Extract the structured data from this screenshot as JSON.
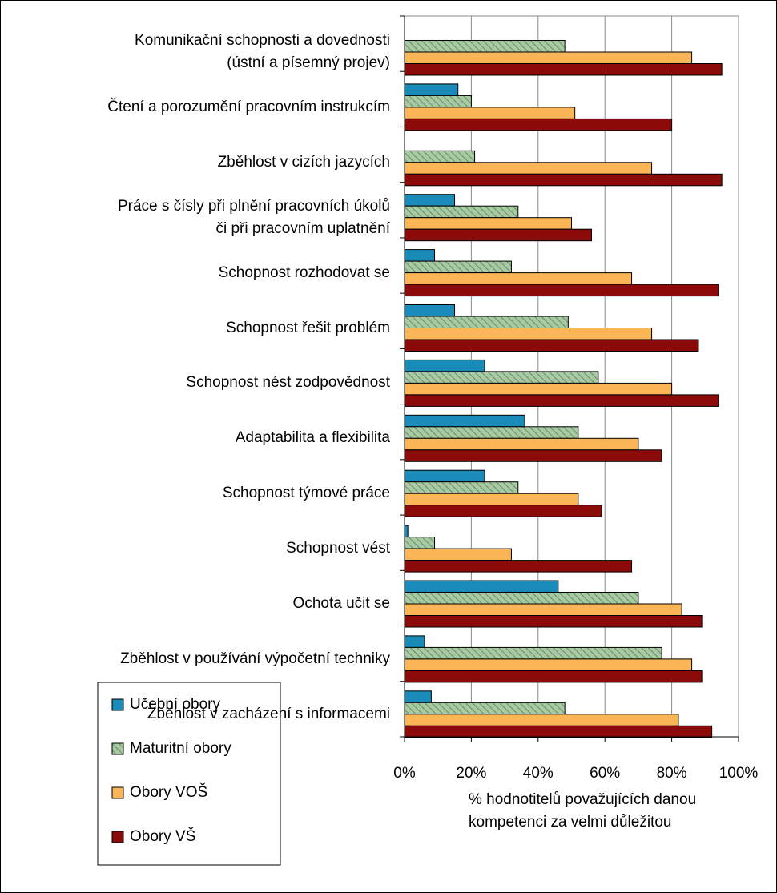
{
  "chart_data": {
    "type": "bar",
    "orientation": "horizontal",
    "categories": [
      "Komunikační schopnosti a dovednosti\n(ústní a písemný projev)",
      "Čtení a porozumění pracovním instrukcím",
      "Zběhlost v cizích jazycích",
      "Práce s čísly při plnění pracovních úkolů\nči při pracovním uplatnění",
      "Schopnost rozhodovat se",
      "Schopnost řešit problém",
      "Schopnost nést zodpovědnost",
      "Adaptabilita a flexibilita",
      "Schopnost týmové práce",
      "Schopnost vést",
      "Ochota učit se",
      "Zběhlost v používání výpočetní techniky",
      "Zběhlost v zacházení s informacemi"
    ],
    "series": [
      {
        "name": "Učební obory",
        "color": "#1a8ab8",
        "values": [
          null,
          16,
          null,
          15,
          9,
          15,
          24,
          36,
          24,
          1,
          46,
          6,
          8
        ]
      },
      {
        "name": "Maturitní obory",
        "color": "#a9c9a4",
        "hatch": "#5f8f5f",
        "values": [
          48,
          20,
          21,
          34,
          32,
          49,
          58,
          52,
          34,
          9,
          70,
          77,
          48
        ]
      },
      {
        "name": "Obory VOŠ",
        "color": "#f9b556",
        "values": [
          86,
          51,
          74,
          50,
          68,
          74,
          80,
          70,
          52,
          32,
          83,
          86,
          82
        ]
      },
      {
        "name": "Obory VŠ",
        "color": "#8b0a0a",
        "values": [
          95,
          80,
          95,
          56,
          94,
          88,
          94,
          77,
          59,
          68,
          89,
          89,
          92
        ]
      }
    ],
    "xlim": [
      0,
      100
    ],
    "xticks": [
      {
        "value": 0,
        "label": "0%"
      },
      {
        "value": 20,
        "label": "20%"
      },
      {
        "value": 40,
        "label": "40%"
      },
      {
        "value": 60,
        "label": "60%"
      },
      {
        "value": 80,
        "label": "80%"
      },
      {
        "value": 100,
        "label": "100%"
      }
    ],
    "x_label": "% hodnotitelů považujících danou\nkompetenci za velmi důležitou",
    "grid": true,
    "legend": "lower left"
  }
}
